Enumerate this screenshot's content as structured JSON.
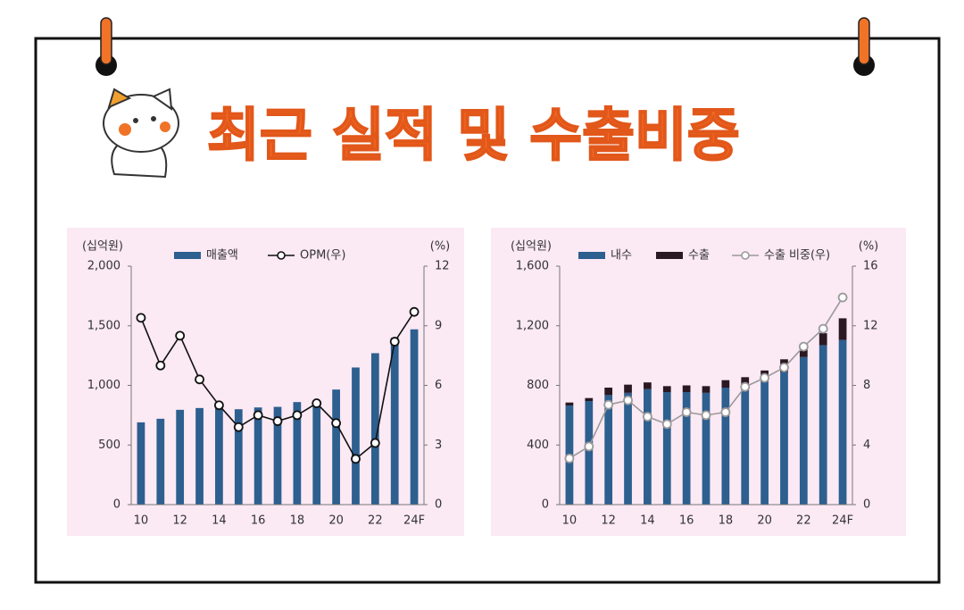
{
  "header": {
    "title": "최근 실적 및 수출비중"
  },
  "chart_data": [
    {
      "type": "combo",
      "y_label": "(십억원)",
      "y2_label": "(%)",
      "categories": [
        "10",
        null,
        "12",
        null,
        "14",
        null,
        "16",
        null,
        "18",
        null,
        "20",
        null,
        "22",
        null,
        "24F"
      ],
      "series": [
        {
          "name": "매출액",
          "kind": "bar",
          "color": "#2d5f8f",
          "values": [
            690,
            720,
            795,
            810,
            835,
            800,
            815,
            820,
            860,
            870,
            965,
            1150,
            1270,
            1400,
            1470
          ]
        },
        {
          "name": "OPM(우)",
          "kind": "line",
          "axis": "y2",
          "color": "#111111",
          "values": [
            9.4,
            7.0,
            8.5,
            6.3,
            5.0,
            3.9,
            4.5,
            4.2,
            4.5,
            5.1,
            4.1,
            2.3,
            3.1,
            8.2,
            9.7
          ]
        }
      ],
      "ylim": [
        0,
        2000
      ],
      "yticks": [
        0,
        500,
        {
          "value": 1000,
          "label": "1,000"
        },
        {
          "value": 1500,
          "label": "1,500"
        },
        {
          "value": 2000,
          "label": "2,000"
        }
      ],
      "y2lim": [
        0,
        12
      ],
      "y2ticks": [
        0,
        3,
        6,
        9,
        12
      ],
      "stacked": false
    },
    {
      "type": "combo",
      "y_label": "(십억원)",
      "y2_label": "(%)",
      "categories": [
        "10",
        null,
        "12",
        null,
        "14",
        null,
        "16",
        null,
        "18",
        null,
        "20",
        null,
        "22",
        null,
        "24F"
      ],
      "series": [
        {
          "name": "내수",
          "kind": "bar",
          "color": "#2d5f8f",
          "values": [
            665,
            695,
            735,
            750,
            775,
            755,
            755,
            750,
            785,
            790,
            830,
            890,
            990,
            1070,
            1105
          ]
        },
        {
          "name": "수출",
          "kind": "bar",
          "color": "#2a1822",
          "values": [
            20,
            20,
            50,
            55,
            45,
            40,
            45,
            45,
            50,
            65,
            70,
            85,
            60,
            80,
            145
          ]
        },
        {
          "name": "수출 비중(우)",
          "kind": "line",
          "axis": "y2",
          "color": "#9a9a9a",
          "values": [
            3.1,
            3.9,
            6.7,
            7.0,
            5.9,
            5.4,
            6.2,
            6.0,
            6.2,
            7.9,
            8.5,
            9.2,
            10.6,
            11.8,
            13.9
          ]
        }
      ],
      "ylim": [
        0,
        1600
      ],
      "yticks": [
        0,
        400,
        800,
        {
          "value": 1200,
          "label": "1,200"
        },
        {
          "value": 1600,
          "label": "1,600"
        }
      ],
      "y2lim": [
        0,
        16
      ],
      "y2ticks": [
        0,
        4,
        8,
        12,
        16
      ],
      "stacked": true
    }
  ]
}
